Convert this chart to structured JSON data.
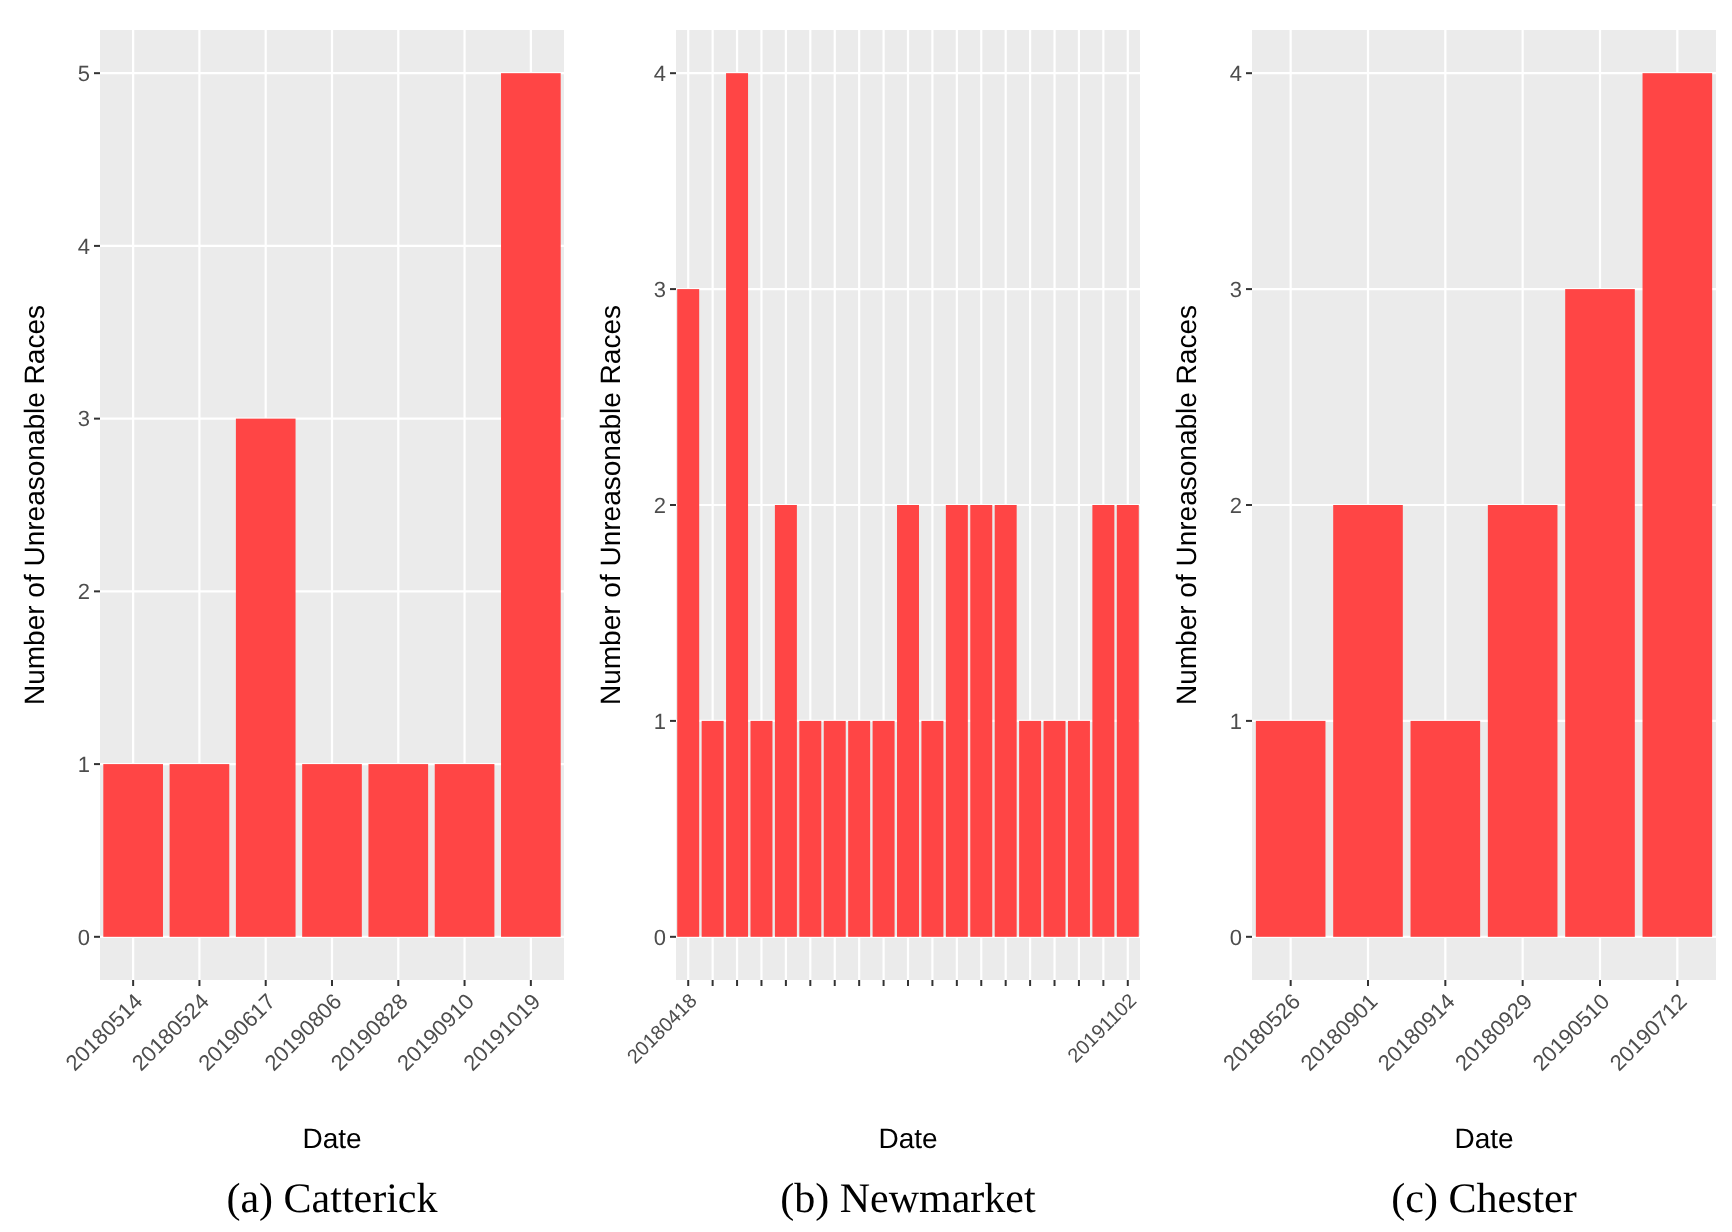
{
  "chart_data": [
    {
      "type": "bar",
      "title": "(a) Catterick",
      "xlabel": "Date",
      "ylabel": "Number of Unreasonable Races",
      "categories": [
        "20180514",
        "20180524",
        "20190617",
        "20190806",
        "20190828",
        "20190910",
        "20191019"
      ],
      "values": [
        1,
        1,
        3,
        1,
        1,
        1,
        5
      ],
      "color": "#ff4545",
      "ylim": [
        -0.25,
        5.25
      ],
      "yticks": [
        0,
        1,
        2,
        3,
        4,
        5
      ],
      "grid": true
    },
    {
      "type": "bar",
      "title": "(b) Newmarket",
      "xlabel": "Date",
      "ylabel": "Number of Unreasonable Races",
      "categories": [
        "20180418",
        null,
        null,
        null,
        null,
        null,
        null,
        null,
        null,
        null,
        null,
        null,
        null,
        null,
        null,
        null,
        null,
        null,
        "20191102"
      ],
      "values": [
        3,
        1,
        4,
        1,
        2,
        1,
        1,
        1,
        1,
        2,
        1,
        2,
        2,
        2,
        1,
        1,
        1,
        2,
        2
      ],
      "color": "#ff4545",
      "ylim": [
        -0.2,
        4.2
      ],
      "yticks": [
        0,
        1,
        2,
        3,
        4
      ],
      "grid": true
    },
    {
      "type": "bar",
      "title": "(c) Chester",
      "xlabel": "Date",
      "ylabel": "Number of Unreasonable Races",
      "categories": [
        "20180526",
        "20180901",
        "20180914",
        "20180929",
        "20190510",
        "20190712"
      ],
      "values": [
        1,
        2,
        1,
        2,
        3,
        4
      ],
      "color": "#ff4545",
      "ylim": [
        -0.2,
        4.2
      ],
      "yticks": [
        0,
        1,
        2,
        3,
        4
      ],
      "grid": true
    }
  ]
}
